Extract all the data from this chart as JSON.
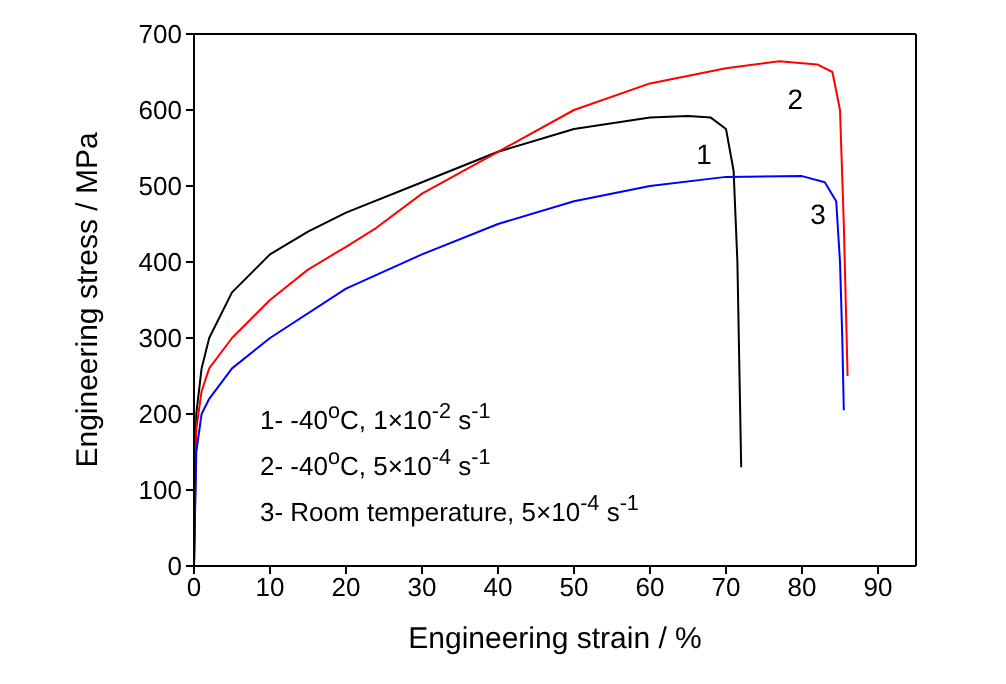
{
  "chart_data": {
    "type": "line",
    "xlabel": "Engineering strain / %",
    "ylabel": "Engineering stress / MPa",
    "xlim": [
      0,
      95
    ],
    "xticks": [
      0,
      10,
      20,
      30,
      40,
      50,
      60,
      70,
      80,
      90
    ],
    "ylim": [
      0,
      700
    ],
    "yticks": [
      0,
      100,
      200,
      300,
      400,
      500,
      600,
      700
    ],
    "legend": false,
    "marker": "none",
    "line_style": "solid",
    "series": [
      {
        "name": "1",
        "color": "#000000",
        "x": [
          0,
          0.3,
          1,
          2,
          5,
          10,
          15,
          20,
          30,
          40,
          50,
          60,
          65,
          68,
          70,
          71,
          71.5,
          72
        ],
        "values": [
          0,
          200,
          260,
          300,
          360,
          410,
          440,
          465,
          505,
          545,
          575,
          590,
          592,
          590,
          575,
          520,
          400,
          130
        ]
      },
      {
        "name": "2",
        "color": "#ff0000",
        "x": [
          0,
          0.3,
          1,
          2,
          5,
          10,
          15,
          20,
          24,
          30,
          40,
          50,
          60,
          70,
          77,
          82,
          84,
          85,
          85.5,
          86
        ],
        "values": [
          0,
          180,
          230,
          260,
          300,
          350,
          390,
          420,
          445,
          490,
          545,
          600,
          635,
          655,
          664,
          660,
          650,
          600,
          450,
          250
        ]
      },
      {
        "name": "3",
        "color": "#0000ff",
        "x": [
          0,
          0.3,
          1,
          2,
          5,
          10,
          20,
          30,
          40,
          50,
          60,
          70,
          80,
          83,
          84.5,
          85,
          85.3,
          85.5
        ],
        "values": [
          0,
          150,
          200,
          220,
          260,
          300,
          365,
          410,
          450,
          480,
          500,
          512,
          513,
          505,
          480,
          400,
          300,
          205
        ]
      }
    ],
    "annotations": [
      "1- -40$^{o}$C, 1×10$^{-2}$ s$^{-1}$",
      "2- -40$^{o}$C, 5×10$^{-4}$ s$^{-1}$",
      "3- Room temperature, 5×10$^{-4}$ s$^{-1}$"
    ]
  }
}
